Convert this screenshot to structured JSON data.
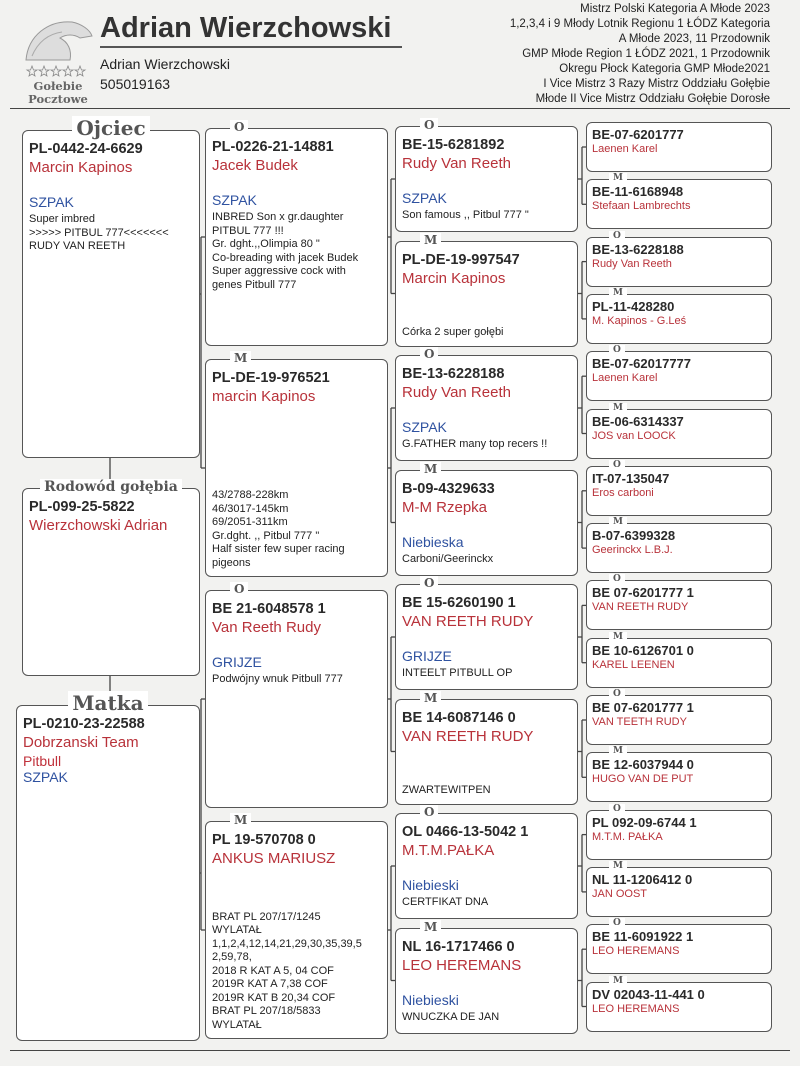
{
  "header": {
    "logo_lines": [
      "Gołebie",
      "Pocztowe"
    ],
    "title": "Adrian Wierzchowski",
    "owner": "Adrian Wierzchowski",
    "phone": "505019163",
    "achievements": [
      "Mistrz Polski Kategoria A Młode 2023",
      "1,2,3,4 i 9 Młody Lotnik Regionu 1 ŁÓDZ Kategoria",
      "A Młode 2023, 11 Przodownik",
      "GMP Młode Region 1 ŁÓDZ 2021, 1 Przodownik",
      "Okregu Płock Kategoria GMP Młode2021",
      "I Vice Mistrz 3 Razy Mistrz Oddziału Gołębie",
      "Młode II Vice Mistrz Oddziału Gołębie Dorosłe"
    ]
  },
  "father": {
    "label": "Ojciec",
    "ring": "PL-0442-24-6629",
    "owner": "Marcin Kapinos",
    "color": "SZPAK",
    "notes": [
      "Super imbred",
      ">>>>> PITBUL 777<<<<<<<",
      "RUDY VAN REETH"
    ]
  },
  "subject": {
    "label": "Rodowód gołębia",
    "ring": "PL-099-25-5822",
    "owner": "Wierzchowski Adrian"
  },
  "mother": {
    "label": "Matka",
    "ring": "PL-0210-23-22588",
    "owner": "Dobrzanski Team",
    "strain": "Pitbull",
    "color": "SZPAK"
  },
  "grandparents": [
    {
      "sex": "O",
      "ring": "PL-0226-21-14881",
      "owner": "Jacek Budek",
      "color": "SZPAK",
      "notes": [
        "INBRED Son x gr.daughter",
        "PITBUL 777 !!!",
        "Gr. dght.,,Olimpia 80 \"",
        "Co-breading with jacek Budek",
        "Super aggressive cock with",
        "genes Pitbull 777"
      ]
    },
    {
      "sex": "M",
      "ring": "PL-DE-19-976521",
      "owner": "marcin Kapinos",
      "notes": [
        "43/2788-228km",
        "46/3017-145km",
        "69/2051-311km",
        "Gr.dght. ,, Pitbul 777 \"",
        "Half sister few super racing",
        "pigeons"
      ]
    },
    {
      "sex": "O",
      "ring": "BE  21-6048578 1",
      "owner": "Van Reeth Rudy",
      "color": "GRIJZE",
      "notes": [
        "Podwójny wnuk Pitbull 777"
      ]
    },
    {
      "sex": "M",
      "ring": "PL 19-570708 0",
      "owner": "ANKUS MARIUSZ",
      "notes": [
        "BRAT PL 207/17/1245",
        "WYLATAŁ",
        "1,1,2,4,12,14,21,29,30,35,39,5",
        "2,59,78,",
        "2018 R KAT A 5, 04 COF",
        "2019R KAT A 7,38 COF",
        "2019R KAT B 20,34 COF",
        "BRAT PL 207/18/5833",
        "WYLATAŁ"
      ]
    }
  ],
  "great_grandparents": [
    {
      "sex": "O",
      "ring": "BE-15-6281892",
      "owner": "Rudy Van Reeth",
      "color": "SZPAK",
      "notes": [
        "Son famous ,, Pitbul 777 \""
      ]
    },
    {
      "sex": "M",
      "ring": "PL-DE-19-997547",
      "owner": "Marcin Kapinos",
      "notes": [
        "Córka 2 super gołębi"
      ]
    },
    {
      "sex": "O",
      "ring": "BE-13-6228188",
      "owner": "Rudy Van Reeth",
      "color": "SZPAK",
      "notes": [
        "G.FATHER many top recers !!"
      ]
    },
    {
      "sex": "M",
      "ring": "B-09-4329633",
      "owner": "M-M Rzepka",
      "color": "Niebieska",
      "notes": [
        "Carboni/Geerinckx"
      ]
    },
    {
      "sex": "O",
      "ring": "BE 15-6260190 1",
      "owner": "VAN REETH RUDY",
      "color": "GRIJZE",
      "notes": [
        "INTEELT PITBULL OP"
      ]
    },
    {
      "sex": "M",
      "ring": "BE 14-6087146 0",
      "owner": "VAN REETH RUDY",
      "notes": [
        "ZWARTEWITPEN"
      ]
    },
    {
      "sex": "O",
      "ring": "OL 0466-13-5042 1",
      "owner": "M.T.M.PAŁKA",
      "color": "Niebieski",
      "notes": [
        "CERTFIKAT DNA"
      ]
    },
    {
      "sex": "M",
      "ring": "NL 16-1717466 0",
      "owner": "LEO HEREMANS",
      "color": "Niebieski",
      "notes": [
        "WNUCZKA DE JAN"
      ]
    }
  ],
  "great_great_grandparents": [
    {
      "ring": "BE-07-6201777",
      "owner": "Laenen Karel"
    },
    {
      "sex": "M",
      "ring": "BE-11-6168948",
      "owner": "Stefaan Lambrechts"
    },
    {
      "sex": "O",
      "ring": "BE-13-6228188",
      "owner": "Rudy Van Reeth"
    },
    {
      "sex": "M",
      "ring": "PL-11-428280",
      "owner": "M. Kapinos - G.Leś"
    },
    {
      "sex": "O",
      "ring": "BE-07-62017777",
      "owner": "Laenen Karel"
    },
    {
      "sex": "M",
      "ring": "BE-06-6314337",
      "owner": "JOS van LOOCK"
    },
    {
      "sex": "O",
      "ring": "IT-07-135047",
      "owner": "Eros carboni"
    },
    {
      "sex": "M",
      "ring": "B-07-6399328",
      "owner": "Geerinckx L.B.J."
    },
    {
      "sex": "O",
      "ring": "BE 07-6201777 1",
      "owner": "VAN REETH RUDY"
    },
    {
      "sex": "M",
      "ring": "BE 10-6126701 0",
      "owner": "KAREL LEENEN"
    },
    {
      "sex": "O",
      "ring": "BE 07-6201777 1",
      "owner": "VAN TEETH RUDY"
    },
    {
      "sex": "M",
      "ring": "BE 12-6037944 0",
      "owner": "HUGO VAN DE PUT"
    },
    {
      "sex": "O",
      "ring": "PL 092-09-6744 1",
      "owner": "M.T.M. PAŁKA"
    },
    {
      "sex": "M",
      "ring": "NL 11-1206412 0",
      "owner": "JAN OOST"
    },
    {
      "sex": "O",
      "ring": "BE 11-6091922 1",
      "owner": "LEO HEREMANS"
    },
    {
      "sex": "M",
      "ring": "DV 02043-11-441 0",
      "owner": "LEO HEREMANS"
    }
  ]
}
